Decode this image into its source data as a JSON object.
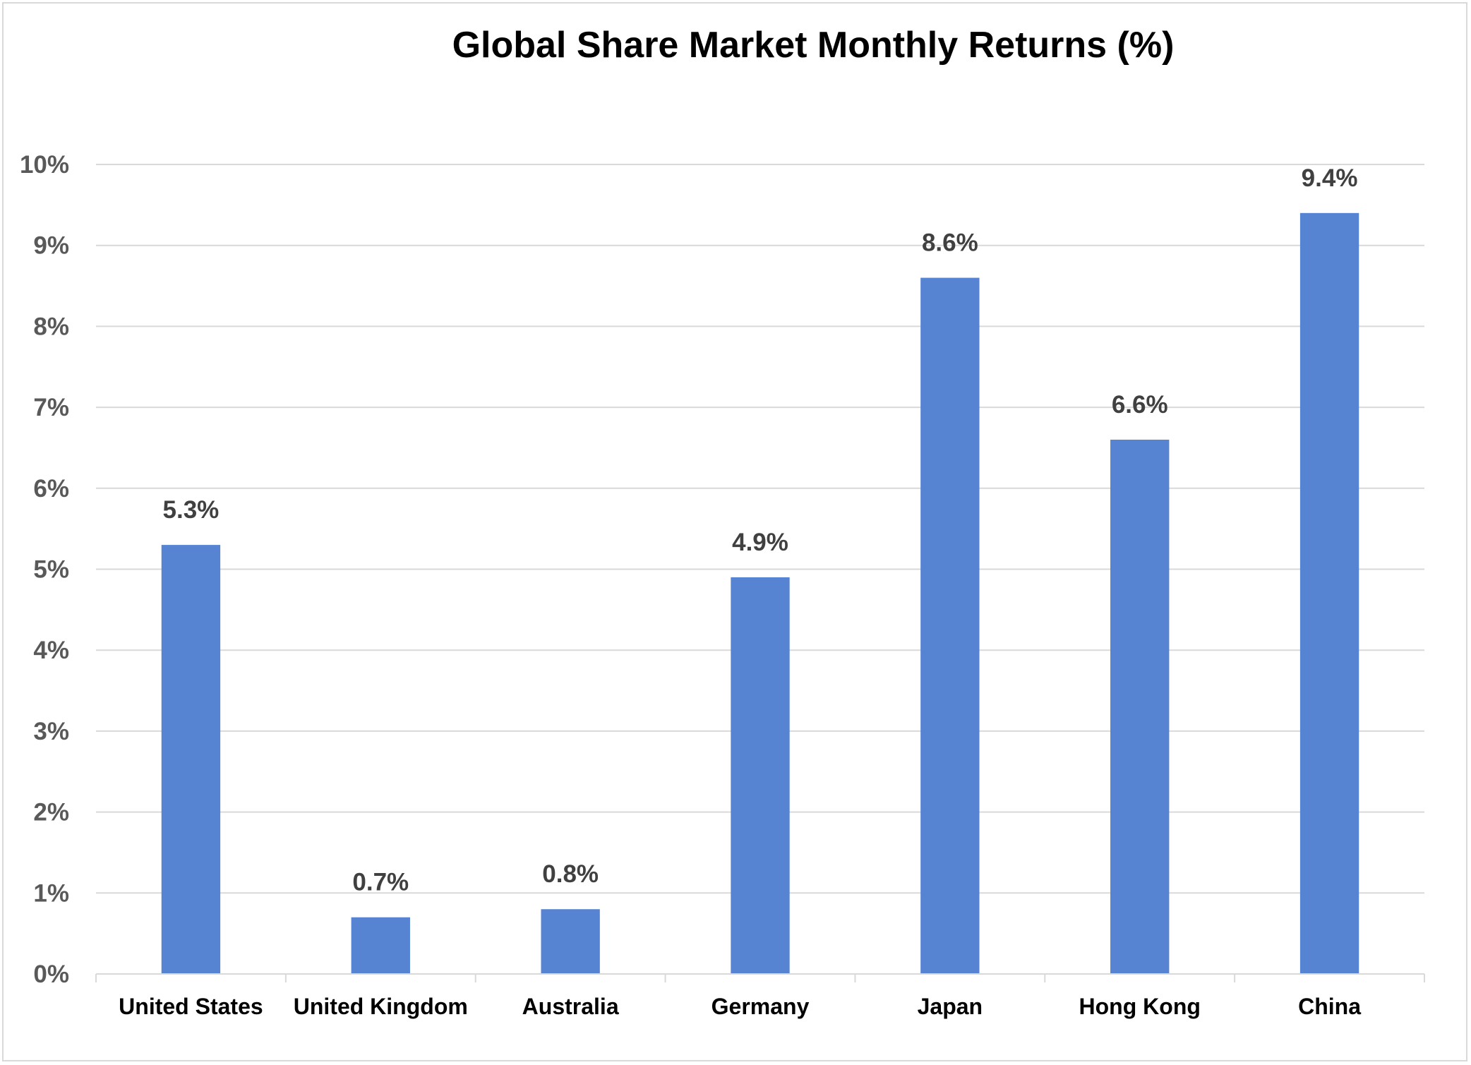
{
  "chart_data": {
    "type": "bar",
    "title": "Global Share Market Monthly Returns (%)",
    "xlabel": "",
    "ylabel": "",
    "categories": [
      "United States",
      "United Kingdom",
      "Australia",
      "Germany",
      "Japan",
      "Hong Kong",
      "China"
    ],
    "values": [
      5.3,
      0.7,
      0.8,
      4.9,
      8.6,
      6.6,
      9.4
    ],
    "data_labels": [
      "5.3%",
      "0.7%",
      "0.8%",
      "4.9%",
      "8.6%",
      "6.6%",
      "9.4%"
    ],
    "ylim": [
      0,
      10
    ],
    "y_ticks": [
      0,
      1,
      2,
      3,
      4,
      5,
      6,
      7,
      8,
      9,
      10
    ],
    "y_tick_labels": [
      "0%",
      "1%",
      "2%",
      "3%",
      "4%",
      "5%",
      "6%",
      "7%",
      "8%",
      "9%",
      "10%"
    ],
    "grid": true,
    "legend": "none",
    "colors": {
      "bar": "#5683d2",
      "grid": "#d9d9d9",
      "axis": "#d9d9d9"
    }
  }
}
